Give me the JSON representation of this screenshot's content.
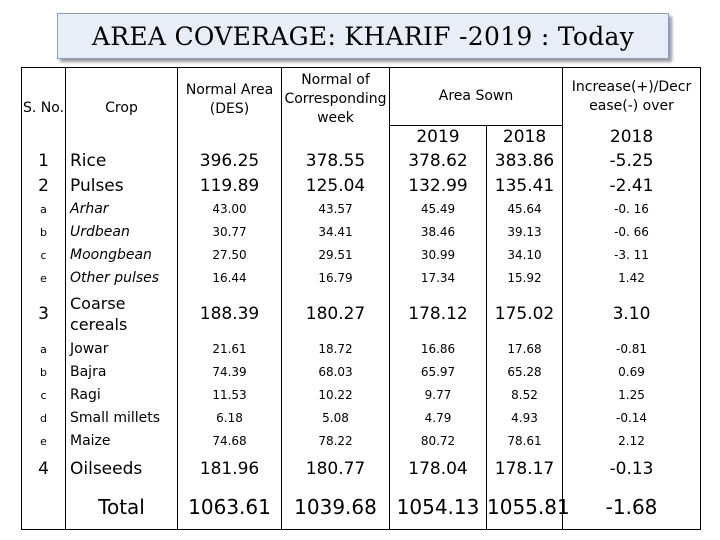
{
  "title": "AREA COVERAGE:  KHARIF -2019 : Today",
  "headers": {
    "sno": "S. No.",
    "crop": "Crop",
    "normal_area": "Normal Area (DES)",
    "normal_week": "Normal of Corresponding week",
    "area_sown": "Area Sown",
    "increase": "Increase(+)/Decr ease(-) over",
    "y2019": "2019",
    "y2018": "2018",
    "y2018b": "2018"
  },
  "rows": [
    {
      "sno": "1",
      "crop": "Rice",
      "normal_area": "396.25",
      "normal_week": "378.55",
      "sown_2019": "378.62",
      "sown_2018": "383.86",
      "change": "-5.25"
    },
    {
      "sno": "2",
      "crop": "Pulses",
      "normal_area": "119.89",
      "normal_week": "125.04",
      "sown_2019": "132.99",
      "sown_2018": "135.41",
      "change": "-2.41"
    },
    {
      "sno": "a",
      "crop": "Arhar",
      "normal_area": "43.00",
      "normal_week": "43.57",
      "sown_2019": "45.49",
      "sown_2018": "45.64",
      "change": "-0. 16"
    },
    {
      "sno": "b",
      "crop": "Urdbean",
      "normal_area": "30.77",
      "normal_week": "34.41",
      "sown_2019": "38.46",
      "sown_2018": "39.13",
      "change": "-0. 66"
    },
    {
      "sno": "c",
      "crop": "Moongbean",
      "normal_area": "27.50",
      "normal_week": "29.51",
      "sown_2019": "30.99",
      "sown_2018": "34.10",
      "change": "-3. 11"
    },
    {
      "sno": "e",
      "crop": "Other pulses",
      "normal_area": "16.44",
      "normal_week": "16.79",
      "sown_2019": "17.34",
      "sown_2018": "15.92",
      "change": "1.42"
    },
    {
      "sno": "3",
      "crop": "Coarse cereals",
      "normal_area": "188.39",
      "normal_week": "180.27",
      "sown_2019": "178.12",
      "sown_2018": "175.02",
      "change": "3.10"
    },
    {
      "sno": "a",
      "crop": "Jowar",
      "normal_area": "21.61",
      "normal_week": "18.72",
      "sown_2019": "16.86",
      "sown_2018": "17.68",
      "change": "-0.81"
    },
    {
      "sno": "b",
      "crop": "Bajra",
      "normal_area": "74.39",
      "normal_week": "68.03",
      "sown_2019": "65.97",
      "sown_2018": "65.28",
      "change": "0.69"
    },
    {
      "sno": "c",
      "crop": "Ragi",
      "normal_area": "11.53",
      "normal_week": "10.22",
      "sown_2019": "9.77",
      "sown_2018": "8.52",
      "change": "1.25"
    },
    {
      "sno": "d",
      "crop": "Small millets",
      "normal_area": "6.18",
      "normal_week": "5.08",
      "sown_2019": "4.79",
      "sown_2018": "4.93",
      "change": "-0.14"
    },
    {
      "sno": "e",
      "crop": "Maize",
      "normal_area": "74.68",
      "normal_week": "78.22",
      "sown_2019": "80.72",
      "sown_2018": "78.61",
      "change": "2.12"
    },
    {
      "sno": "4",
      "crop": "Oilseeds",
      "normal_area": "181.96",
      "normal_week": "180.77",
      "sown_2019": "178.04",
      "sown_2018": "178.17",
      "change": "-0.13"
    }
  ],
  "total": {
    "label": "Total",
    "normal_area": "1063.61",
    "normal_week": "1039.68",
    "sown_2019": "1054.13",
    "sown_2018": "1055.81",
    "change": "-1.68"
  }
}
